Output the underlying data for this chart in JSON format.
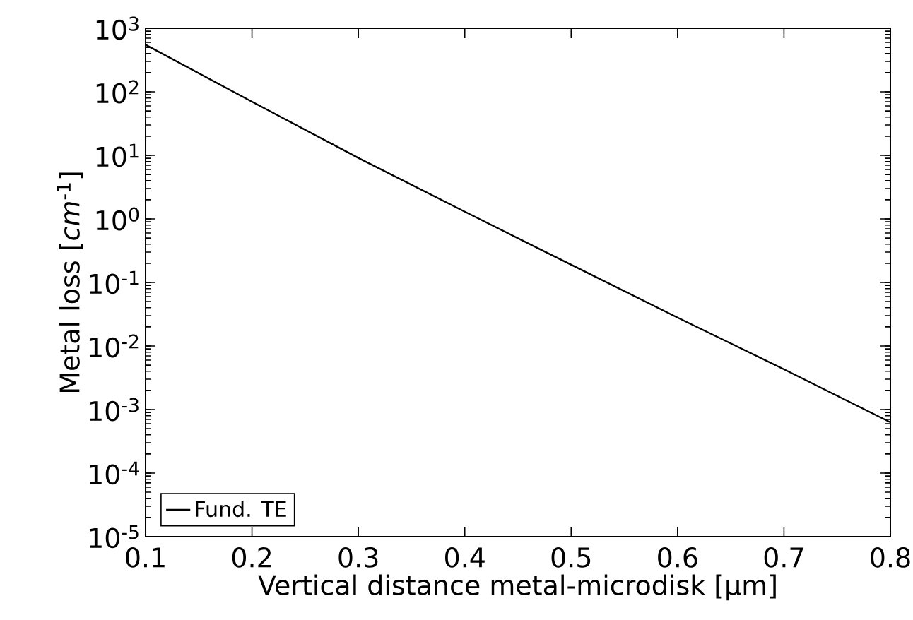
{
  "chart_data": {
    "type": "line",
    "xlabel": "Vertical distance metal-microdisk [μm]",
    "ylabel": "Metal loss [*cm*$^{-1}$]",
    "x": [
      0.1,
      0.2,
      0.3,
      0.4,
      0.5,
      0.6,
      0.7,
      0.8
    ],
    "series": [
      {
        "name": "Fund. TE",
        "color": "#000000",
        "values": [
          550,
          70,
          9.1,
          1.3,
          0.19,
          0.028,
          0.0043,
          0.00063
        ]
      }
    ],
    "xlim": [
      0.1,
      0.8
    ],
    "xticks": [
      0.1,
      0.2,
      0.3,
      0.4,
      0.5,
      0.6,
      0.7,
      0.8
    ],
    "ylim": [
      1e-05,
      1000
    ],
    "yticks": [
      {
        "value": 1e-05,
        "label": "10$^{-5}$"
      },
      {
        "value": 0.0001,
        "label": "10$^{-4}$"
      },
      {
        "value": 0.001,
        "label": "10$^{-3}$"
      },
      {
        "value": 0.01,
        "label": "10$^{-2}$"
      },
      {
        "value": 0.1,
        "label": "10$^{-1}$"
      },
      {
        "value": 1,
        "label": "10$^{0}$"
      },
      {
        "value": 10,
        "label": "10$^{1}$"
      },
      {
        "value": 100,
        "label": "10$^{2}$"
      },
      {
        "value": 1000,
        "label": "10$^{3}$"
      }
    ],
    "log": "y",
    "grid": false,
    "legend": "bottom left",
    "marker": "none",
    "line_style": "solid"
  }
}
